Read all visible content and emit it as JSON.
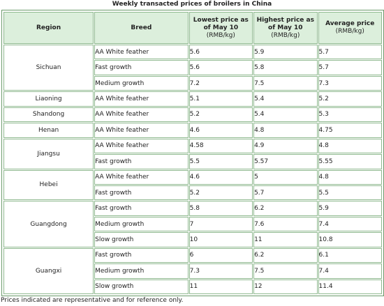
{
  "title": "Weekly transacted prices of broilers in China",
  "headers": {
    "region": "Region",
    "breed": "Breed",
    "lowest": "Lowest price as of May 10",
    "highest": "Highest price as of May 10",
    "average": "Average price",
    "unit": "(RMB/kg)"
  },
  "regions": [
    {
      "name": "Sichuan",
      "rows": [
        {
          "breed": "AA White feather",
          "low": "5.6",
          "high": "5.9",
          "avg": "5.7"
        },
        {
          "breed": "Fast growth",
          "low": "5.6",
          "high": "5.8",
          "avg": "5.7"
        },
        {
          "breed": "Medium growth",
          "low": "7.2",
          "high": "7.5",
          "avg": "7.3"
        }
      ]
    },
    {
      "name": "Liaoning",
      "rows": [
        {
          "breed": "AA White feather",
          "low": "5.1",
          "high": "5.4",
          "avg": "5.2"
        }
      ]
    },
    {
      "name": "Shandong",
      "rows": [
        {
          "breed": "AA White feather",
          "low": "5.2",
          "high": "5.4",
          "avg": "5.3"
        }
      ]
    },
    {
      "name": "Henan",
      "rows": [
        {
          "breed": "AA White feather",
          "low": "4.6",
          "high": "4.8",
          "avg": "4.75"
        }
      ]
    },
    {
      "name": "Jiangsu",
      "rows": [
        {
          "breed": "AA White feather",
          "low": "4.58",
          "high": "4.9",
          "avg": "4.8"
        },
        {
          "breed": "Fast growth",
          "low": "5.5",
          "high": "5.57",
          "avg": "5.55"
        }
      ]
    },
    {
      "name": "Hebei",
      "rows": [
        {
          "breed": "AA White feather",
          "low": "4.6",
          "high": "5",
          "avg": "4.8"
        },
        {
          "breed": "Fast growth",
          "low": "5.2",
          "high": "5.7",
          "avg": "5.5"
        }
      ]
    },
    {
      "name": "Guangdong",
      "rows": [
        {
          "breed": "Fast growth",
          "low": "5.8",
          "high": "6.2",
          "avg": "5.9"
        },
        {
          "breed": "Medium growth",
          "low": "7",
          "high": "7.6",
          "avg": "7.4"
        },
        {
          "breed": "Slow growth",
          "low": "10",
          "high": "11",
          "avg": "10.8"
        }
      ]
    },
    {
      "name": "Guangxi",
      "rows": [
        {
          "breed": "Fast growth",
          "low": "6",
          "high": "6.2",
          "avg": "6.1"
        },
        {
          "breed": "Medium growth",
          "low": "7.3",
          "high": "7.5",
          "avg": "7.4"
        },
        {
          "breed": "Slow growth",
          "low": "11",
          "high": "12",
          "avg": "11.4"
        }
      ]
    }
  ],
  "note": "Prices indicated are representative and for reference only."
}
